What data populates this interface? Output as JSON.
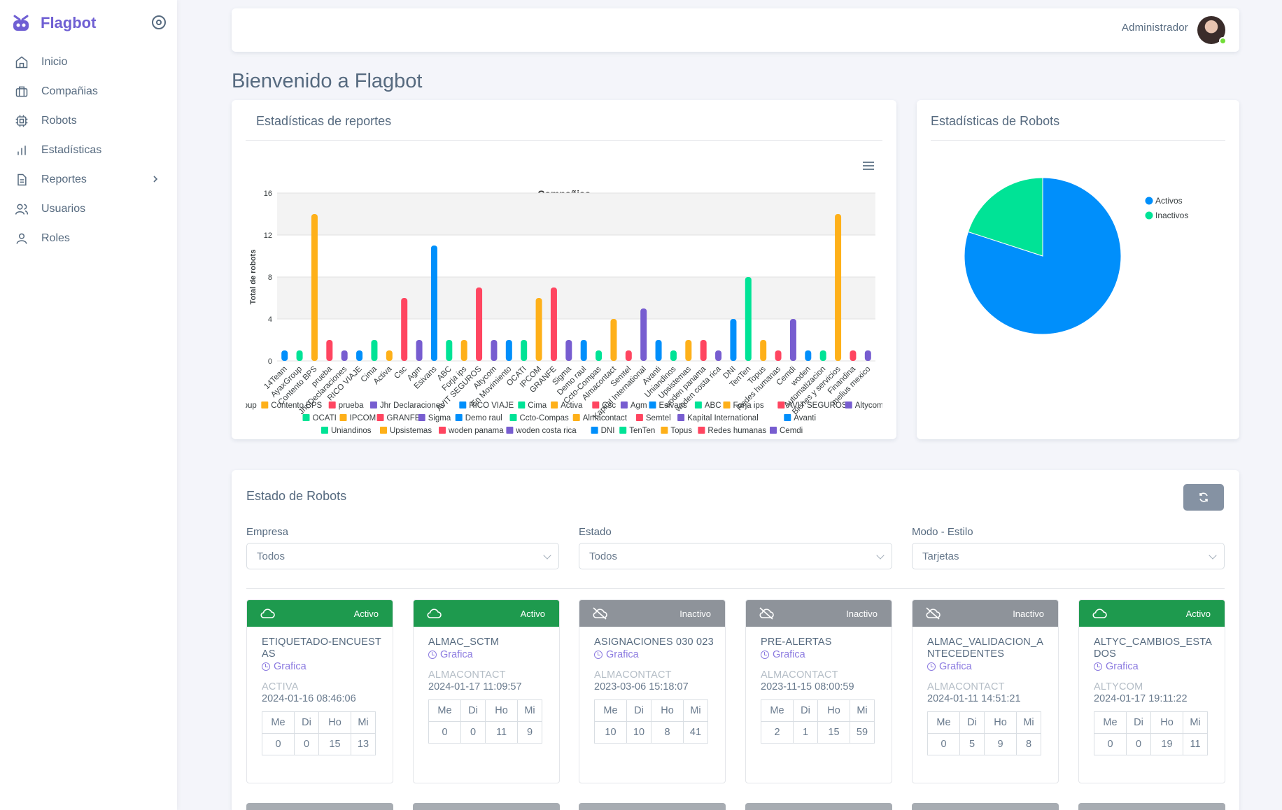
{
  "app": {
    "name": "Flagbot",
    "logo_icon": "robot-logo-icon",
    "accent": "#6f5fd3"
  },
  "sidebar": {
    "items": [
      {
        "label": "Inicio",
        "icon": "home-icon"
      },
      {
        "label": "Compañias",
        "icon": "briefcase-icon"
      },
      {
        "label": "Robots",
        "icon": "chip-icon"
      },
      {
        "label": "Estadísticas",
        "icon": "bar-chart-icon"
      },
      {
        "label": "Reportes",
        "icon": "file-icon",
        "has_submenu": true
      },
      {
        "label": "Usuarios",
        "icon": "users-icon"
      },
      {
        "label": "Roles",
        "icon": "user-icon"
      }
    ]
  },
  "header": {
    "user_name": "Administrador",
    "status": "online"
  },
  "page": {
    "title": "Bienvenido a Flagbot"
  },
  "reports_card": {
    "title": "Estadísticas de reportes",
    "menu_icon": "hamburger-menu-icon"
  },
  "chart_data": [
    {
      "type": "bar",
      "title": "Compañias",
      "ylabel": "Total de robots",
      "xlabel": "",
      "ylim": [
        0,
        16
      ],
      "yticks": [
        0,
        4,
        8,
        12,
        16
      ],
      "grid": true,
      "legend": "bottom",
      "categories": [
        "14Team",
        "AyaxGroup",
        "Contento BPS",
        "prueba",
        "Jhr Declaraciones",
        "RICO VIAJE",
        "Cima",
        "Activa",
        "Csc",
        "Agm",
        "Esivans",
        "ABC",
        "Forja ips",
        "AVIT SEGUROS",
        "Altycom",
        "En Movimiento",
        "OCATI",
        "IPCOM",
        "GRANFE",
        "Sigma",
        "Demo raul",
        "Ccto-Compas",
        "Almacontact",
        "Semtel",
        "Kapital International",
        "Avanti",
        "Uniandinos",
        "Upsistemas",
        "woden panama",
        "woden costa rica",
        "DNI",
        "TenTen",
        "Topus",
        "Redes humanas",
        "Cemdi",
        "woden",
        "Automatizacion",
        "Bienes y servicios",
        "Finandina",
        "melius mexico"
      ],
      "values": [
        1,
        1,
        14,
        2,
        1,
        1,
        2,
        1,
        6,
        2,
        11,
        2,
        2,
        7,
        2,
        2,
        2,
        6,
        7,
        2,
        2,
        1,
        4,
        1,
        5,
        2,
        1,
        2,
        2,
        1,
        4,
        8,
        2,
        1,
        4,
        1,
        1,
        14,
        1,
        1
      ],
      "colors": [
        "#008ffb",
        "#00e396",
        "#feb019",
        "#ff4560",
        "#775dd0"
      ]
    },
    {
      "type": "pie",
      "categories": [
        "Activos",
        "Inactivos"
      ],
      "values": [
        80,
        20
      ],
      "colors": [
        "#008ffb",
        "#00e396"
      ],
      "legend": "top-right"
    }
  ],
  "robots_card": {
    "title": "Estadísticas de Robots"
  },
  "status_card": {
    "title": "Estado de Robots",
    "refresh_icon": "refresh-icon",
    "filters": [
      {
        "label": "Empresa",
        "value": "Todos"
      },
      {
        "label": "Estado",
        "value": "Todos"
      },
      {
        "label": "Modo - Estilo",
        "value": "Tarjetas"
      }
    ],
    "table_headers": [
      "Me",
      "Di",
      "Ho",
      "Mi"
    ],
    "robots": [
      {
        "status": "Activo",
        "active": true,
        "name": "ETIQUETADO-ENCUESTAS",
        "link": "Grafica",
        "company": "ACTIVA",
        "date": "2024-01-16 08:46:06",
        "values": [
          "0",
          "0",
          "15",
          "13"
        ]
      },
      {
        "status": "Activo",
        "active": true,
        "name": "ALMAC_SCTM",
        "link": "Grafica",
        "company": "ALMACONTACT",
        "date": "2024-01-17 11:09:57",
        "values": [
          "0",
          "0",
          "11",
          "9"
        ]
      },
      {
        "status": "Inactivo",
        "active": false,
        "name": "ASIGNACIONES 030 023",
        "link": "Grafica",
        "company": "ALMACONTACT",
        "date": "2023-03-06 15:18:07",
        "values": [
          "10",
          "10",
          "8",
          "41"
        ]
      },
      {
        "status": "Inactivo",
        "active": false,
        "name": "PRE-ALERTAS",
        "link": "Grafica",
        "company": "ALMACONTACT",
        "date": "2023-11-15 08:00:59",
        "values": [
          "2",
          "1",
          "15",
          "59"
        ]
      },
      {
        "status": "Inactivo",
        "active": false,
        "name": "ALMAC_VALIDACION_ANTECEDENTES",
        "link": "Grafica",
        "company": "ALMACONTACT",
        "date": "2024-01-11 14:51:21",
        "values": [
          "0",
          "5",
          "9",
          "8"
        ]
      },
      {
        "status": "Activo",
        "active": true,
        "name": "ALTYC_CAMBIOS_ESTADOS",
        "link": "Grafica",
        "company": "ALTYCOM",
        "date": "2024-01-17 19:11:22",
        "values": [
          "0",
          "0",
          "19",
          "11"
        ]
      }
    ]
  }
}
